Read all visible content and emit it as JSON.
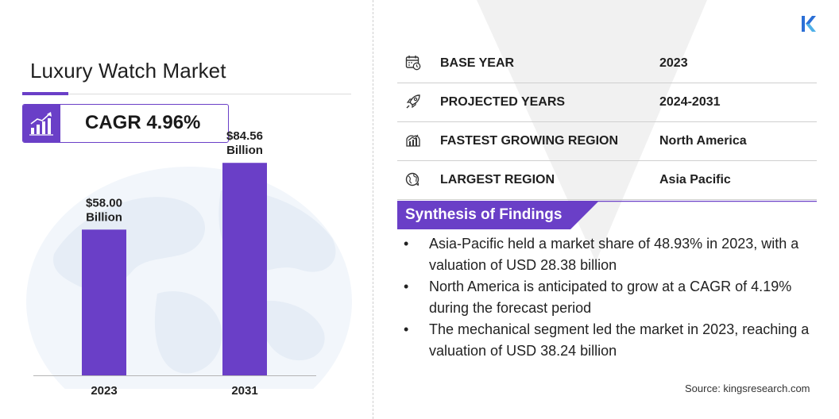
{
  "header": {
    "title": "Luxury Watch Market",
    "cagr_label": "CAGR 4.96%"
  },
  "chart_data": {
    "type": "bar",
    "categories": [
      "2023",
      "2031"
    ],
    "values": [
      58.0,
      84.56
    ],
    "data_labels": [
      [
        "$58.00",
        "Billion"
      ],
      [
        "$84.56",
        "Billion"
      ]
    ],
    "title": "",
    "xlabel": "",
    "ylabel": "",
    "ylim": [
      0,
      90
    ],
    "grid": false,
    "bar_color": "#6a3fc7"
  },
  "details": [
    {
      "label": "BASE YEAR",
      "value": "2023",
      "icon": "calendar-icon"
    },
    {
      "label": "PROJECTED YEARS",
      "value": "2024-2031",
      "icon": "rocket-icon"
    },
    {
      "label": "FASTEST GROWING REGION",
      "value": "North America",
      "icon": "region-growth-icon"
    },
    {
      "label": "LARGEST REGION",
      "value": "Asia Pacific",
      "icon": "globe-icon"
    }
  ],
  "synthesis": {
    "title": "Synthesis of Findings",
    "bullet": "•",
    "items": [
      "Asia-Pacific held a market share of 48.93% in 2023, with a valuation of USD 28.38 billion",
      "North America is anticipated to grow at a CAGR of 4.19% during the forecast period",
      "The mechanical segment led the market in 2023, reaching a valuation of USD 38.24 billion"
    ]
  },
  "source": "Source:  kingsresearch.com",
  "colors": {
    "accent": "#6a3fc7",
    "globe": "#e9eff7"
  }
}
